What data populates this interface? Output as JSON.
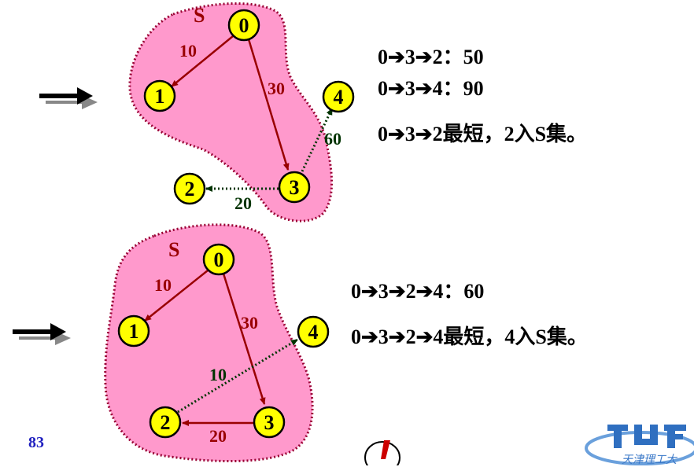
{
  "panel_top": {
    "set_label": "S",
    "nodes": [
      "0",
      "1",
      "3",
      "4",
      "2"
    ],
    "edge_weights": [
      "10",
      "30",
      "60",
      "20"
    ],
    "lines": [
      "0➔3➔2：50",
      "0➔3➔4：90",
      "0➔3➔2最短，2入S集。"
    ]
  },
  "panel_bottom": {
    "set_label": "S",
    "nodes": [
      "0",
      "1",
      "4",
      "2",
      "3"
    ],
    "edge_weights": [
      "10",
      "30",
      "10",
      "20"
    ],
    "lines": [
      "0➔3➔2➔4：60",
      "0➔3➔2➔4最短，4入S集。"
    ]
  },
  "footer": {
    "page_number": "83",
    "logo_text": "天津理工大"
  },
  "colors": {
    "set_fill": "#ff99cc",
    "set_border": "#990033",
    "node_fill": "#ffff00",
    "edge_solid": "#990000",
    "edge_dotted": "#003300",
    "weight_label": "#990000",
    "weight_label_green": "#003300"
  },
  "icons": [
    "right-arrow-icon",
    "warning-icon",
    "university-logo"
  ]
}
